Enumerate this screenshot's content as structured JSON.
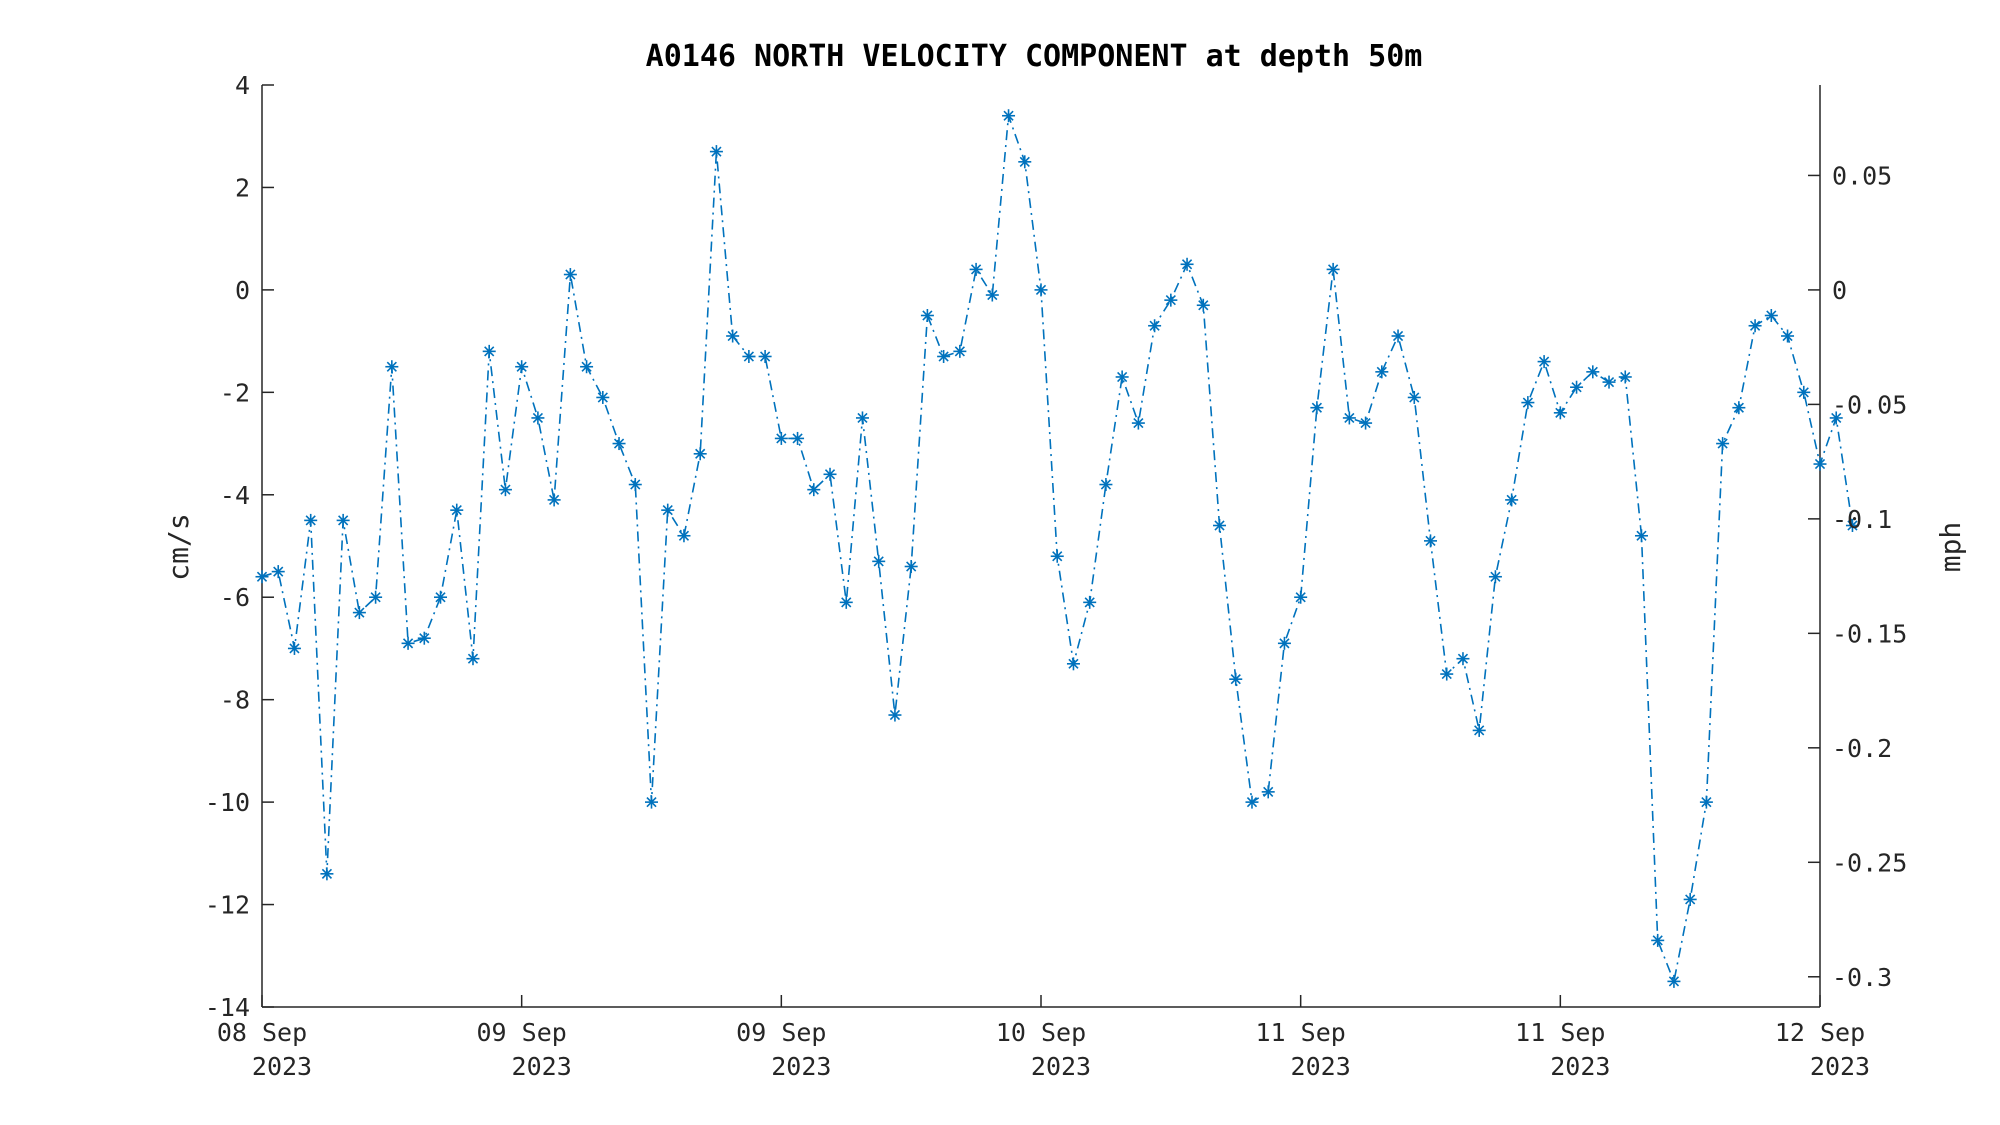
{
  "chart_data": {
    "type": "line",
    "title": "A0146 NORTH VELOCITY COMPONENT at depth 50m",
    "ylabel": "cm/s",
    "ylabel_right": "mph",
    "ylim": [
      -14,
      4
    ],
    "ylim_right": [
      -0.3132,
      0.0895
    ],
    "yticks": [
      4,
      2,
      0,
      -2,
      -4,
      -6,
      -8,
      -10,
      -12,
      -14
    ],
    "yticks_right": [
      0.05,
      0,
      -0.05,
      -0.1,
      -0.15,
      -0.2,
      -0.25,
      -0.3
    ],
    "yticks_right_labels": [
      "0.05",
      "0",
      "-0.05",
      "-0.1",
      "-0.15",
      "-0.2",
      "-0.25",
      "-0.3"
    ],
    "xlim": [
      "2023-09-08 00:00",
      "2023-09-12 00:00"
    ],
    "xticks": [
      {
        "x": "2023-09-08 00:00",
        "line1": "08 Sep",
        "line2": "2023"
      },
      {
        "x": "2023-09-08 16:00",
        "line1": "09 Sep",
        "line2": "2023"
      },
      {
        "x": "2023-09-09 08:00",
        "line1": "09 Sep",
        "line2": "2023"
      },
      {
        "x": "2023-09-10 00:00",
        "line1": "10 Sep",
        "line2": "2023"
      },
      {
        "x": "2023-09-10 16:00",
        "line1": "11 Sep",
        "line2": "2023"
      },
      {
        "x": "2023-09-11 08:00",
        "line1": "11 Sep",
        "line2": "2023"
      },
      {
        "x": "2023-09-12 00:00",
        "line1": "12 Sep",
        "line2": "2023"
      }
    ],
    "x_step": "1 hour",
    "grid": false,
    "marker": "asterisk",
    "line_style": "dash-dot",
    "color": "#0072BD",
    "series": [
      {
        "x_start": "2023-09-08 00:00",
        "values": [
          -5.6,
          -5.5,
          -7.0,
          -4.5,
          -11.4,
          -4.5,
          -6.3,
          -6.0,
          -1.5,
          -6.9,
          -6.8,
          -6.0,
          -4.3,
          -7.2,
          -1.2,
          -3.9,
          -1.5,
          -2.5,
          -4.1,
          0.3,
          -1.5,
          -2.1,
          -3.0,
          -3.8,
          -10.0,
          -4.3,
          -4.8,
          -3.2,
          2.7,
          -0.9,
          -1.3,
          -1.3,
          -2.9,
          -2.9,
          -3.9,
          -3.6,
          -6.1,
          -2.5,
          -5.3,
          -8.3,
          -5.4,
          -0.5,
          -1.3,
          -1.2,
          0.4,
          -0.1,
          3.4,
          2.5,
          0.0,
          -5.2,
          -7.3,
          -6.1,
          -3.8,
          -1.7,
          -2.6,
          -0.7,
          -0.2,
          0.5,
          -0.3,
          -4.6,
          -7.6,
          -10.0,
          -9.8,
          -6.9,
          -6.0,
          -2.3,
          0.4,
          -2.5,
          -2.6,
          -1.6,
          -0.9,
          -2.1,
          -4.9,
          -7.5,
          -7.2,
          -8.6,
          -5.6,
          -4.1,
          -2.2,
          -1.4,
          -2.4,
          -1.9,
          -1.6,
          -1.8,
          -1.7,
          -4.8,
          -12.7,
          -13.5,
          -11.9,
          -10.0,
          -3.0,
          -2.3,
          -0.7,
          -0.5,
          -0.9,
          -2.0,
          -3.4,
          -2.5,
          -4.6
        ]
      }
    ]
  }
}
